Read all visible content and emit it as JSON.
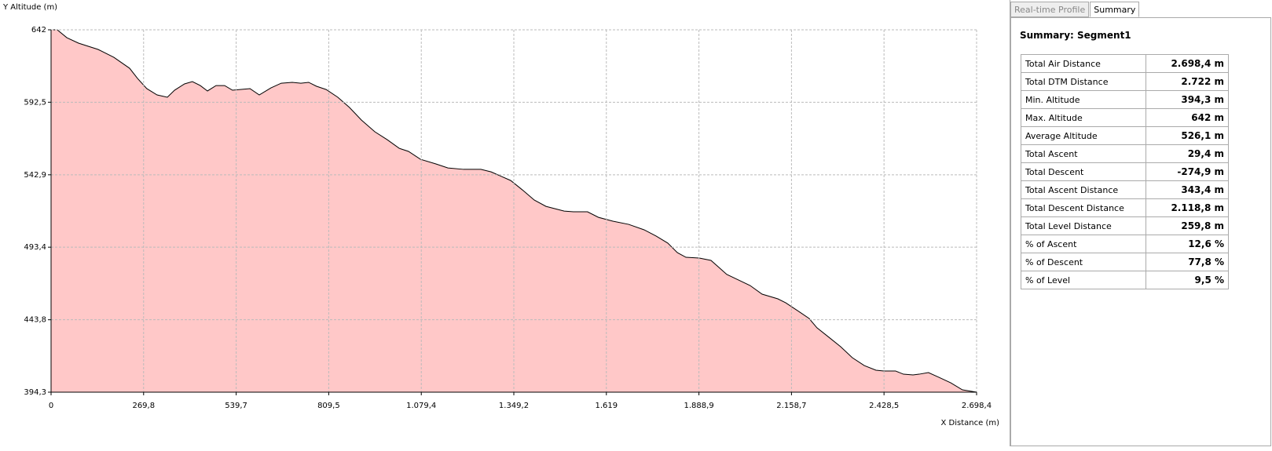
{
  "chart_data": {
    "type": "area",
    "y_label": "Y Altitude (m)",
    "x_label": "X Distance (m)",
    "color": "#ffc8c8",
    "line_color": "#000000",
    "grid": true,
    "x": [
      0,
      18,
      46,
      80,
      137,
      183,
      229,
      252,
      279,
      309,
      339,
      360,
      389,
      412,
      435,
      456,
      481,
      506,
      529,
      580,
      607,
      641,
      671,
      703,
      728,
      751,
      774,
      802,
      836,
      870,
      905,
      944,
      980,
      1015,
      1042,
      1077,
      1122,
      1157,
      1203,
      1253,
      1283,
      1340,
      1374,
      1409,
      1443,
      1496,
      1523,
      1564,
      1596,
      1638,
      1684,
      1729,
      1764,
      1798,
      1826,
      1851,
      1890,
      1924,
      1947,
      1970,
      2004,
      2038,
      2073,
      2119,
      2142,
      2176,
      2210,
      2233,
      2268,
      2302,
      2336,
      2371,
      2405,
      2428,
      2462,
      2485,
      2513,
      2531,
      2558,
      2588,
      2623,
      2657,
      2698.4
    ],
    "values": [
      642,
      642,
      636.6,
      632.9,
      628.6,
      623.2,
      615.7,
      608.8,
      601.8,
      597.5,
      595.9,
      600.7,
      605.0,
      606.6,
      603.9,
      600.2,
      603.9,
      603.9,
      600.7,
      601.8,
      597.5,
      602.3,
      605.5,
      606.1,
      605.5,
      606.1,
      603.4,
      601.2,
      595.9,
      588.9,
      580.3,
      572.3,
      566.9,
      561.0,
      558.9,
      553.5,
      550.3,
      547.6,
      546.6,
      546.6,
      544.9,
      539.0,
      532.6,
      525.6,
      521.3,
      518.1,
      517.6,
      517.6,
      513.8,
      511.2,
      509.0,
      505.3,
      501.0,
      496.2,
      489.7,
      486.5,
      486.0,
      484.4,
      479.6,
      474.8,
      471.0,
      467.2,
      461.3,
      458.1,
      455.4,
      450.1,
      444.7,
      438.3,
      431.8,
      425.4,
      417.9,
      412.5,
      409.3,
      408.8,
      408.8,
      406.6,
      406.1,
      406.6,
      407.7,
      404.5,
      400.7,
      395.9,
      394.3
    ],
    "xlim": [
      0,
      2698.4
    ],
    "ylim": [
      394.3,
      642
    ],
    "xticks": [
      0,
      {
        "value": 269.8,
        "label": "269,8"
      },
      {
        "value": 539.7,
        "label": "539,7"
      },
      {
        "value": 809.5,
        "label": "809,5"
      },
      {
        "value": 1079.4,
        "label": "1.079,4"
      },
      {
        "value": 1349.2,
        "label": "1.349,2"
      },
      {
        "value": 1619,
        "label": "1.619"
      },
      {
        "value": 1888.9,
        "label": "1.888,9"
      },
      {
        "value": 2158.7,
        "label": "2.158,7"
      },
      {
        "value": 2428.5,
        "label": "2.428,5"
      },
      {
        "value": 2698.4,
        "label": "2.698,4"
      }
    ],
    "yticks": [
      {
        "value": 394.3,
        "label": "394,3"
      },
      {
        "value": 443.8,
        "label": "443,8"
      },
      {
        "value": 493.4,
        "label": "493,4"
      },
      {
        "value": 542.9,
        "label": "542,9"
      },
      {
        "value": 592.5,
        "label": "592,5"
      },
      642
    ]
  },
  "panel": {
    "tabs": [
      "Real-time Profile",
      "Summary"
    ],
    "title": "Summary: Segment1",
    "rows": [
      [
        "Total Air Distance",
        "2.698,4 m"
      ],
      [
        "Total DTM Distance",
        "2.722 m"
      ],
      [
        "Min. Altitude",
        "394,3 m"
      ],
      [
        "Max. Altitude",
        "642 m"
      ],
      [
        "Average Altitude",
        "526,1 m"
      ],
      [
        "Total Ascent",
        "29,4 m"
      ],
      [
        "Total Descent",
        "-274,9 m"
      ],
      [
        "Total Ascent Distance",
        "343,4 m"
      ],
      [
        "Total Descent Distance",
        "2.118,8 m"
      ],
      [
        "Total Level Distance",
        "259,8 m"
      ],
      [
        "% of Ascent",
        "12,6 %"
      ],
      [
        "% of Descent",
        "77,8 %"
      ],
      [
        "% of Level",
        "9,5 %"
      ]
    ]
  }
}
